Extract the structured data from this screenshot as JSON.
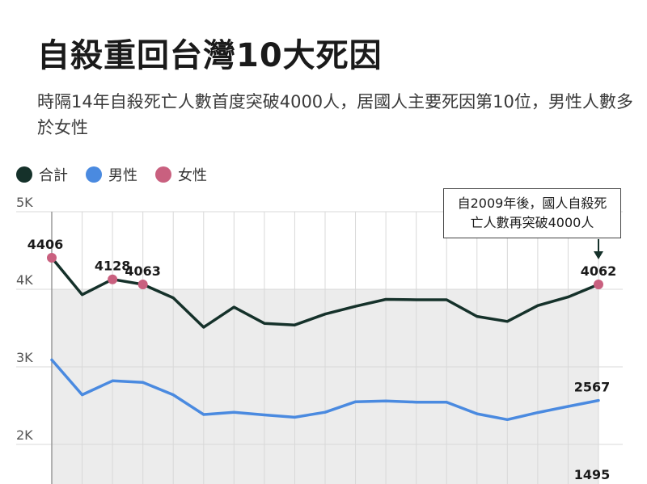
{
  "title": "自殺重回台灣10大死因",
  "subtitle": "時隔14年自殺死亡人數首度突破4000人，居國人主要死因第10位，男性人數多於女性",
  "colors": {
    "total": "#15312a",
    "male": "#4a8ae0",
    "female": "#c9607f",
    "shade": "#ececec",
    "grid": "#d8d8d8"
  },
  "callout": "自2009年後，國人自殺死亡人數再突破4000人",
  "chart_data": {
    "type": "line",
    "ylim": [
      1500,
      5000
    ],
    "yticks": [
      {
        "value": 2000,
        "label": "2K"
      },
      {
        "value": 3000,
        "label": "3K"
      },
      {
        "value": 4000,
        "label": "4K"
      },
      {
        "value": 5000,
        "label": "5K"
      }
    ],
    "series": [
      {
        "name": "合計",
        "key": "total",
        "values": [
          4406,
          3930,
          4128,
          4063,
          3890,
          3510,
          3770,
          3560,
          3540,
          3680,
          3780,
          3870,
          3865,
          3865,
          3650,
          3585,
          3790,
          3900,
          4062
        ]
      },
      {
        "name": "男性",
        "key": "male",
        "values": [
          3090,
          2640,
          2820,
          2800,
          2640,
          2385,
          2415,
          2380,
          2350,
          2415,
          2550,
          2560,
          2545,
          2545,
          2395,
          2320,
          2410,
          2490,
          2567
        ]
      },
      {
        "name": "女性",
        "key": "female",
        "values": []
      }
    ],
    "highlight_points": [
      {
        "series": "total",
        "index": 0,
        "label": "4406"
      },
      {
        "series": "total",
        "index": 2,
        "label": "4128"
      },
      {
        "series": "total",
        "index": 3,
        "label": "4063"
      },
      {
        "series": "total",
        "index": 18,
        "label": "4062"
      }
    ],
    "end_labels": [
      {
        "series": "male",
        "label": "2567"
      },
      {
        "series": "female",
        "label": "1495"
      }
    ]
  }
}
